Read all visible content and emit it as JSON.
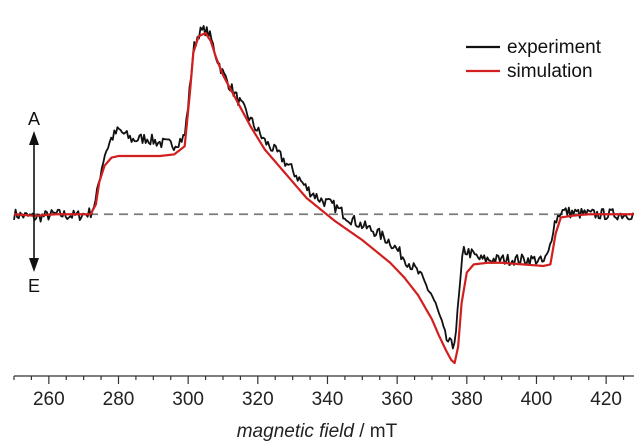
{
  "chart_data": {
    "type": "line",
    "title": "",
    "xlabel": {
      "italic": "magnetic field",
      "unit": " / mT"
    },
    "ylabel": "",
    "xlim": [
      250,
      428
    ],
    "ylim": [
      -1.0,
      1.25
    ],
    "x_ticks": [
      260,
      280,
      300,
      320,
      340,
      360,
      380,
      400,
      420
    ],
    "y_axis_visible": false,
    "baseline": {
      "y": 0,
      "style": "dashed",
      "color": "#7a7a7a"
    },
    "arrow_labels": {
      "up": "A",
      "down": "E"
    },
    "legend_position": "top-right",
    "series": [
      {
        "name": "experiment",
        "color": "#111111",
        "noisy": true,
        "x": [
          250,
          256,
          262,
          268,
          272,
          273.5,
          274.5,
          276,
          278,
          280,
          284,
          288,
          292,
          296,
          299,
          300.5,
          301.5,
          303,
          305,
          306.5,
          308,
          310,
          314,
          318,
          322,
          326,
          330,
          334,
          338,
          342,
          346,
          350,
          354,
          358,
          362,
          366,
          370,
          372,
          374,
          376,
          377,
          378,
          379,
          381,
          384,
          390,
          396,
          400,
          402,
          403.5,
          405,
          407,
          410,
          415,
          420,
          428
        ],
        "y": [
          0.0,
          -0.02,
          0.0,
          -0.01,
          0.01,
          0.08,
          0.22,
          0.37,
          0.47,
          0.52,
          0.46,
          0.47,
          0.44,
          0.43,
          0.48,
          0.78,
          1.02,
          1.12,
          1.14,
          1.09,
          0.98,
          0.87,
          0.72,
          0.58,
          0.45,
          0.37,
          0.27,
          0.16,
          0.09,
          0.05,
          -0.02,
          -0.07,
          -0.11,
          -0.17,
          -0.27,
          -0.36,
          -0.5,
          -0.62,
          -0.77,
          -0.82,
          -0.7,
          -0.45,
          -0.22,
          -0.24,
          -0.28,
          -0.28,
          -0.28,
          -0.28,
          -0.3,
          -0.24,
          -0.06,
          0.02,
          0.01,
          0.0,
          0.0,
          0.0
        ]
      },
      {
        "name": "simulation",
        "color": "#d11f1f",
        "noisy": false,
        "x": [
          250,
          256,
          262,
          268,
          272,
          273.5,
          274.5,
          276,
          278,
          280,
          284,
          288,
          292,
          296,
          299,
          300.5,
          301.5,
          303,
          305,
          306.5,
          308,
          310,
          314,
          318,
          322,
          326,
          330,
          334,
          338,
          342,
          346,
          350,
          354,
          358,
          362,
          366,
          370,
          372,
          374,
          375.5,
          376.5,
          377.5,
          378.5,
          380,
          382,
          386,
          390,
          396,
          402,
          404,
          405.5,
          407,
          410,
          415,
          420,
          428
        ],
        "y": [
          0.0,
          -0.01,
          0.0,
          0.0,
          0.0,
          0.06,
          0.2,
          0.3,
          0.35,
          0.36,
          0.36,
          0.36,
          0.36,
          0.37,
          0.42,
          0.75,
          1.0,
          1.1,
          1.12,
          1.07,
          0.97,
          0.86,
          0.7,
          0.54,
          0.4,
          0.3,
          0.2,
          0.1,
          0.03,
          -0.04,
          -0.1,
          -0.16,
          -0.23,
          -0.3,
          -0.39,
          -0.5,
          -0.65,
          -0.75,
          -0.84,
          -0.9,
          -0.92,
          -0.82,
          -0.55,
          -0.36,
          -0.31,
          -0.3,
          -0.3,
          -0.31,
          -0.32,
          -0.31,
          -0.12,
          -0.02,
          -0.01,
          0.0,
          0.0,
          0.0
        ]
      }
    ]
  }
}
